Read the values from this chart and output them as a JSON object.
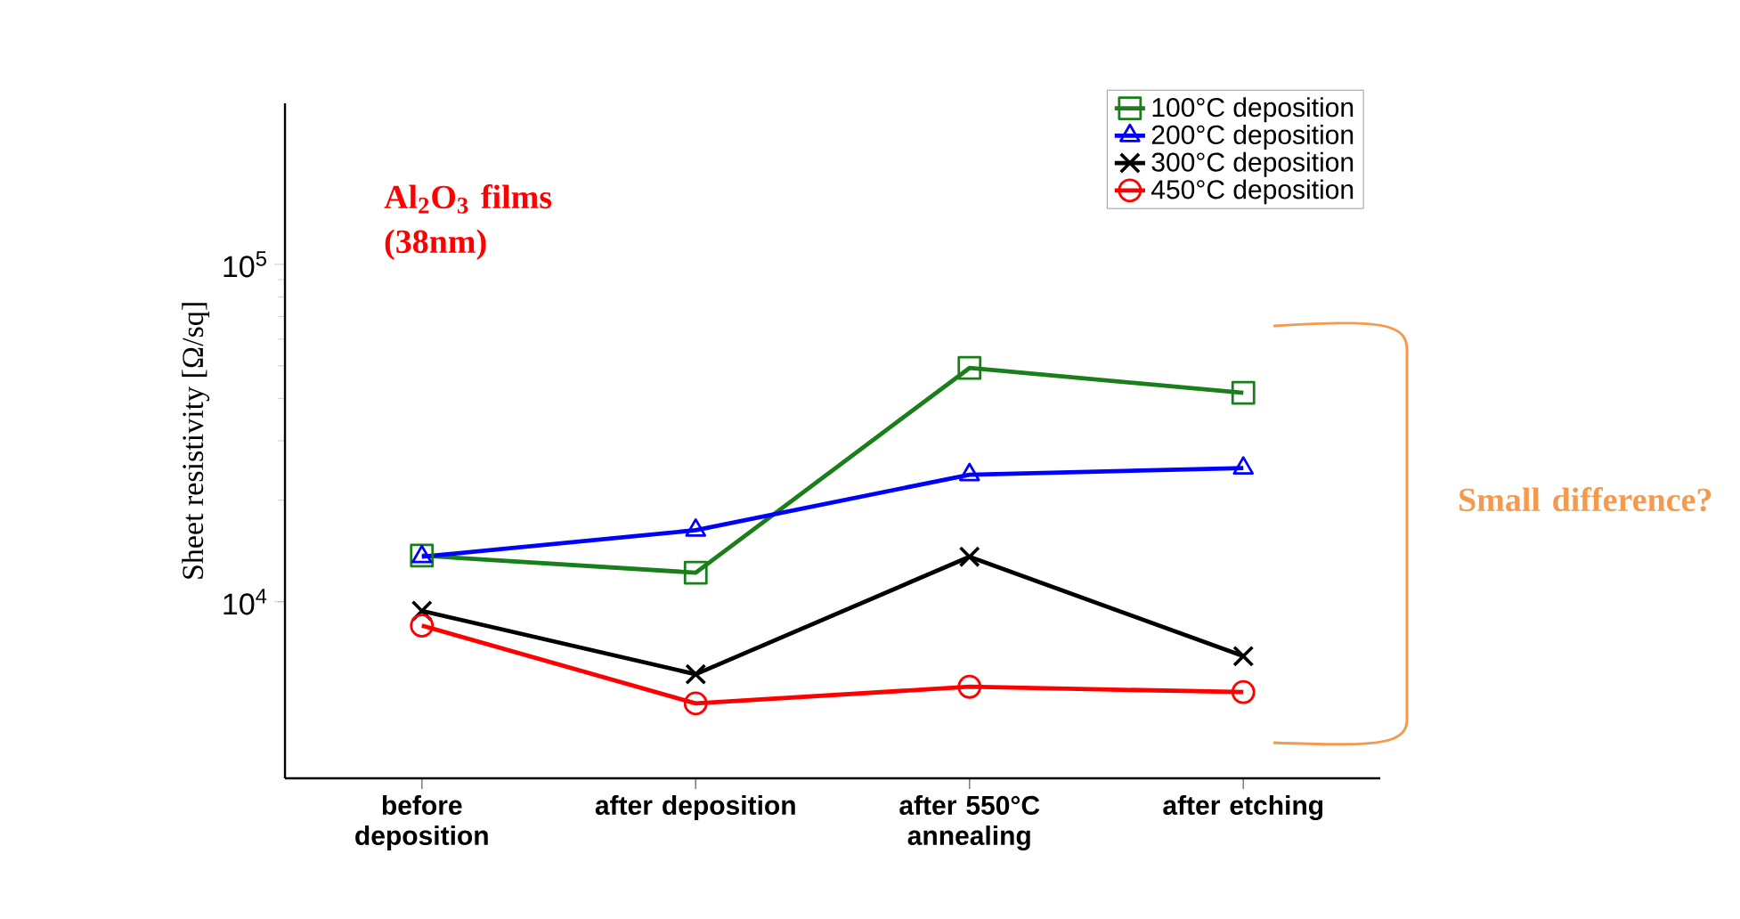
{
  "chart_data": {
    "type": "line",
    "ylabel": "Sheet resistivity [Ω/sq]",
    "categories": [
      "before deposition",
      "after deposition",
      "after 550°C annealing",
      "after etching"
    ],
    "series": [
      {
        "name": "100°C deposition",
        "color": "#1a7f1a",
        "marker": "square",
        "values": [
          13700,
          12200,
          49300,
          41600
        ]
      },
      {
        "name": "200°C deposition",
        "color": "#0000ff",
        "marker": "triangle",
        "values": [
          13600,
          16300,
          23800,
          24900
        ]
      },
      {
        "name": "300°C deposition",
        "color": "#000000",
        "marker": "cross",
        "values": [
          9400,
          6100,
          13600,
          6900
        ]
      },
      {
        "name": "450°C deposition",
        "color": "#ff0000",
        "marker": "circle",
        "values": [
          8500,
          5000,
          5600,
          5400
        ]
      }
    ],
    "log": "y",
    "ylim": [
      3000,
      300000
    ],
    "yticks": [
      {
        "value": 10000,
        "label": "10$^{4}$"
      },
      {
        "value": 100000,
        "label": "10$^{5}$"
      }
    ],
    "grid": false,
    "legend": "top right",
    "line_style": "solid",
    "annotations": [
      "Al$_{2}$O$_{3}$ films (38nm)",
      "Small difference?"
    ]
  }
}
